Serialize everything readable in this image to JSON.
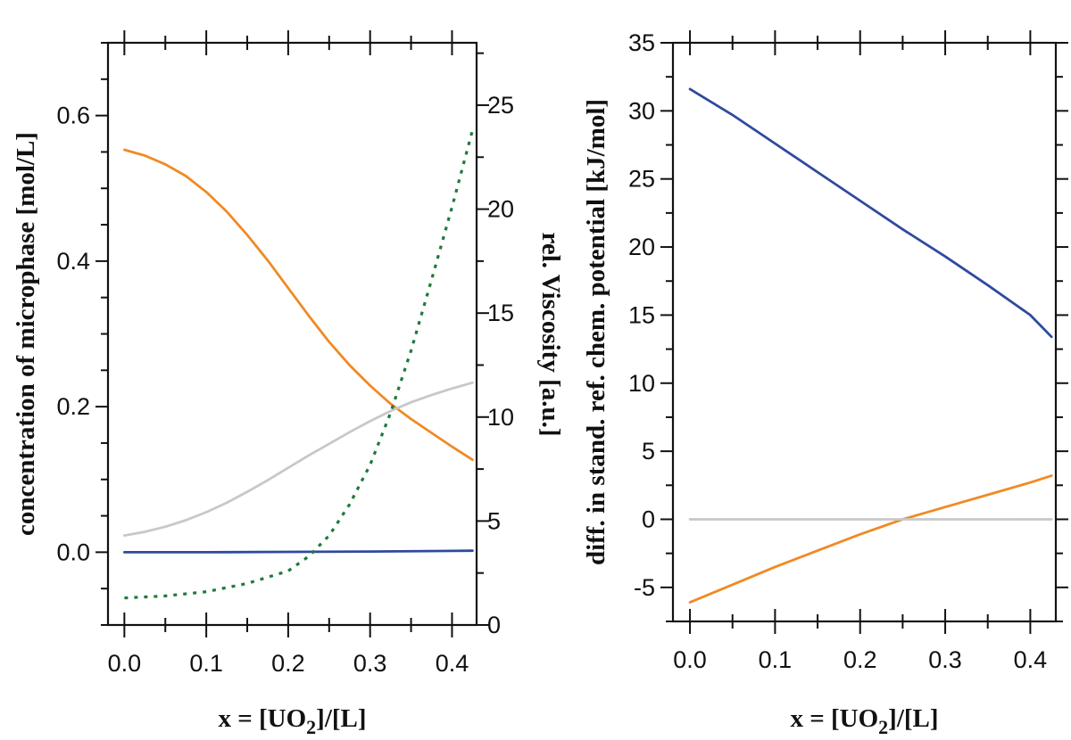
{
  "chart_data": [
    {
      "type": "line",
      "xlabel": "x = [UO2]/[L]",
      "xlabel_parts": [
        "x = [UO",
        "2",
        "]/[L]"
      ],
      "ylabel": "concentration of microphase [mol/L]",
      "y2label": "rel. Viscosity [a.u.]",
      "xlim": [
        -0.02,
        0.43
      ],
      "ylim": [
        -0.1,
        0.7
      ],
      "y2lim": [
        0,
        28
      ],
      "xticks": [
        0.0,
        0.1,
        0.2,
        0.3,
        0.4
      ],
      "xtick_labels": [
        "0.0",
        "0.1",
        "0.2",
        "0.3",
        "0.4"
      ],
      "yticks": [
        0.0,
        0.2,
        0.4,
        0.6
      ],
      "ytick_labels": [
        "0.0",
        "0.2",
        "0.4",
        "0.6"
      ],
      "y2ticks": [
        0,
        5,
        10,
        15,
        20,
        25
      ],
      "y2tick_labels": [
        "0",
        "5",
        "10",
        "15",
        "20",
        "25"
      ],
      "series": [
        {
          "color": "#f08a24",
          "style": "solid",
          "axis": "left",
          "x": [
            0.0,
            0.025,
            0.05,
            0.075,
            0.1,
            0.125,
            0.15,
            0.175,
            0.2,
            0.225,
            0.25,
            0.275,
            0.3,
            0.325,
            0.35,
            0.375,
            0.4,
            0.425
          ],
          "y": [
            0.553,
            0.545,
            0.533,
            0.517,
            0.495,
            0.468,
            0.436,
            0.401,
            0.363,
            0.325,
            0.289,
            0.257,
            0.229,
            0.204,
            0.183,
            0.164,
            0.145,
            0.127
          ]
        },
        {
          "color": "#c8c8c8",
          "style": "solid",
          "axis": "left",
          "x": [
            0.0,
            0.025,
            0.05,
            0.075,
            0.1,
            0.125,
            0.15,
            0.175,
            0.2,
            0.225,
            0.25,
            0.275,
            0.3,
            0.325,
            0.35,
            0.375,
            0.4,
            0.425
          ],
          "y": [
            0.023,
            0.028,
            0.035,
            0.044,
            0.055,
            0.068,
            0.083,
            0.099,
            0.116,
            0.133,
            0.149,
            0.165,
            0.18,
            0.194,
            0.206,
            0.216,
            0.225,
            0.233
          ]
        },
        {
          "color": "#2e4a9e",
          "style": "solid",
          "axis": "left",
          "x": [
            0.0,
            0.1,
            0.2,
            0.3,
            0.425
          ],
          "y": [
            0.0,
            0.0,
            0.0005,
            0.001,
            0.002
          ]
        },
        {
          "color": "#1f7a3a",
          "style": "dotted",
          "axis": "right",
          "x": [
            0.0,
            0.05,
            0.1,
            0.15,
            0.2,
            0.225,
            0.25,
            0.275,
            0.3,
            0.325,
            0.35,
            0.375,
            0.4,
            0.425
          ],
          "y": [
            1.3,
            1.4,
            1.6,
            2.0,
            2.6,
            3.3,
            4.3,
            5.8,
            7.7,
            10.2,
            13.2,
            16.6,
            20.1,
            23.8
          ]
        }
      ]
    },
    {
      "type": "line",
      "xlabel": "x = [UO2]/[L]",
      "xlabel_parts": [
        "x = [UO",
        "2",
        "]/[L]"
      ],
      "ylabel": "diff. in stand. ref. chem. potential [kJ/mol]",
      "xlim": [
        -0.02,
        0.43
      ],
      "ylim": [
        -7.5,
        35
      ],
      "xticks": [
        0.0,
        0.1,
        0.2,
        0.3,
        0.4
      ],
      "xtick_labels": [
        "0.0",
        "0.1",
        "0.2",
        "0.3",
        "0.4"
      ],
      "yticks": [
        -5,
        0,
        5,
        10,
        15,
        20,
        25,
        30,
        35
      ],
      "ytick_labels": [
        "-5",
        "0",
        "5",
        "10",
        "15",
        "20",
        "25",
        "30",
        "35"
      ],
      "series": [
        {
          "color": "#2e4a9e",
          "style": "solid",
          "x": [
            0.0,
            0.05,
            0.1,
            0.15,
            0.2,
            0.25,
            0.3,
            0.35,
            0.4,
            0.425
          ],
          "y": [
            31.6,
            29.7,
            27.6,
            25.5,
            23.4,
            21.3,
            19.3,
            17.2,
            15.0,
            13.4
          ]
        },
        {
          "color": "#f08a24",
          "style": "solid",
          "x": [
            0.0,
            0.05,
            0.1,
            0.15,
            0.2,
            0.25,
            0.3,
            0.35,
            0.4,
            0.425
          ],
          "y": [
            -6.1,
            -4.8,
            -3.5,
            -2.3,
            -1.1,
            0.0,
            0.9,
            1.8,
            2.7,
            3.2
          ]
        },
        {
          "color": "#c8c8c8",
          "style": "solid",
          "x": [
            0.0,
            0.425
          ],
          "y": [
            0.0,
            0.0
          ]
        }
      ]
    }
  ]
}
